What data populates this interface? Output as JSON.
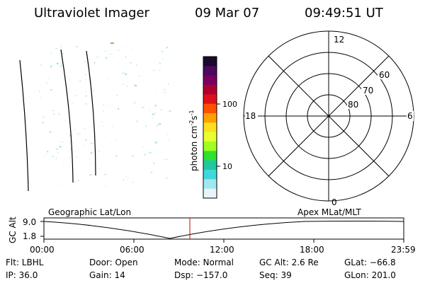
{
  "header": {
    "instrument": "Ultraviolet Imager",
    "date": "09 Mar 07",
    "time": "09:49:51 UT"
  },
  "colorbar": {
    "label_main": "photon cm",
    "label_exp1": "-2",
    "label_mid": "s",
    "label_exp2": "-1",
    "tick_100": "100",
    "tick_10": "10",
    "colors": [
      "#1a0a2e",
      "#4b0a5e",
      "#7a0060",
      "#b00030",
      "#e0101a",
      "#ff5000",
      "#ffa000",
      "#ffe020",
      "#e8ff30",
      "#a0ff20",
      "#30e030",
      "#20c8a0",
      "#40d8d8",
      "#a0e8f0",
      "#e8f4f8"
    ]
  },
  "polar": {
    "label_top": "12",
    "label_bottom": "0",
    "label_left": "18",
    "label_right": "6",
    "label_60": "60",
    "label_70": "70",
    "label_80": "80"
  },
  "timeline": {
    "axis_label": "GC Alt",
    "y_top": "9.0",
    "y_bottom": "1.8",
    "left_title": "Geographic Lat/Lon",
    "right_title": "Apex MLat/MLT",
    "x_ticks": [
      "00:00",
      "06:00",
      "12:00",
      "18:00",
      "23:59"
    ],
    "current_marker_color": "#cc0000"
  },
  "info": {
    "filter": "Flt: LBHL",
    "ip": "IP: 36.0",
    "door": "Door: Open",
    "gain": "Gain: 14",
    "mode": "Mode: Normal",
    "dsp": "Dsp: −157.0",
    "gc_alt": "GC Alt: 2.6 Re",
    "seq": "Seq: 39",
    "glat": "GLat: −66.8",
    "glon": "GLon: 201.0"
  }
}
